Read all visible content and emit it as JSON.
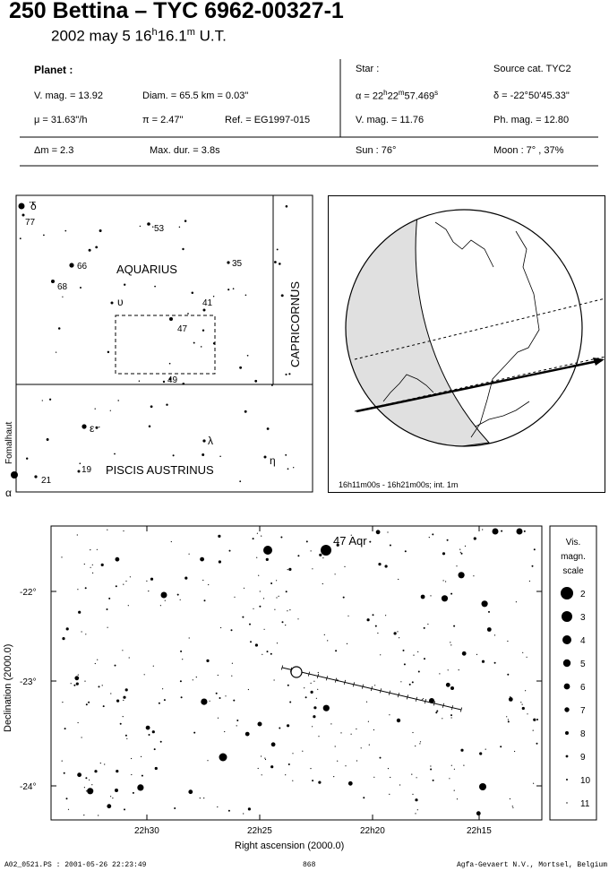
{
  "header": {
    "title": "250 Bettina  –  TYC 6962-00327-1",
    "date_prefix": "2002 may  5  16",
    "hours_sup": "h",
    "minutes": "16.1",
    "minutes_sup": "m",
    "timescale": " U.T."
  },
  "planet": {
    "heading": "Planet :",
    "vmag": "V. mag. = 13.92",
    "diam": "Diam. = 65.5 km = 0.03\"",
    "mu": "μ =  31.63\"/h",
    "parallax": "π =  2.47\"",
    "ref": "Ref. = EG1997-015",
    "delta_m": "Δm = 2.3",
    "max_dur": "Max. dur. = 3.8s"
  },
  "star": {
    "heading": "Star :",
    "source_cat": "Source cat.  TYC2",
    "ra_prefix": "α = 22",
    "ra_h": "h",
    "ra_mid": "22",
    "ra_m": "m",
    "ra_sec": "57.469",
    "ra_s": "s",
    "dec": "δ = -22°50'45.33\"",
    "vmag": "V. mag. = 11.76",
    "phmag": "Ph. mag. = 12.80",
    "sun": "Sun :  76°",
    "moon": "Moon :   7° , 37%"
  },
  "finder": {
    "constellations": [
      "AQUARIUS",
      "CAPRICORNUS",
      "PISCIS AUSTRINUS"
    ],
    "star_labels": [
      "δ",
      "77",
      "53",
      "66",
      "35",
      "68",
      "υ",
      "41",
      "47",
      "49",
      "ε",
      "λ",
      "η",
      "19",
      "21",
      "α",
      "Fomalhaut"
    ]
  },
  "globe": {
    "caption": "16h11m00s - 16h21m00s; int.  1m"
  },
  "starmap": {
    "target_label": "47 Aqr",
    "y_axis_title": "Declination (2000.0)",
    "x_axis_title": "Right ascension (2000.0)",
    "y_ticks": [
      "-22°",
      "-23°",
      "-24°"
    ],
    "x_ticks": [
      "22h30",
      "22h25",
      "22h20",
      "22h15"
    ]
  },
  "legend": {
    "title_lines": [
      "Vis.",
      "magn.",
      "scale"
    ],
    "entries": [
      "2",
      "3",
      "4",
      "5",
      "6",
      "7",
      "8",
      "9",
      "10",
      "11"
    ]
  },
  "footer": {
    "left": "A02_0521.PS : 2001-05-26 22:23:49",
    "center": "868",
    "right": "Agfa-Gevaert N.V., Mortsel, Belgium"
  }
}
